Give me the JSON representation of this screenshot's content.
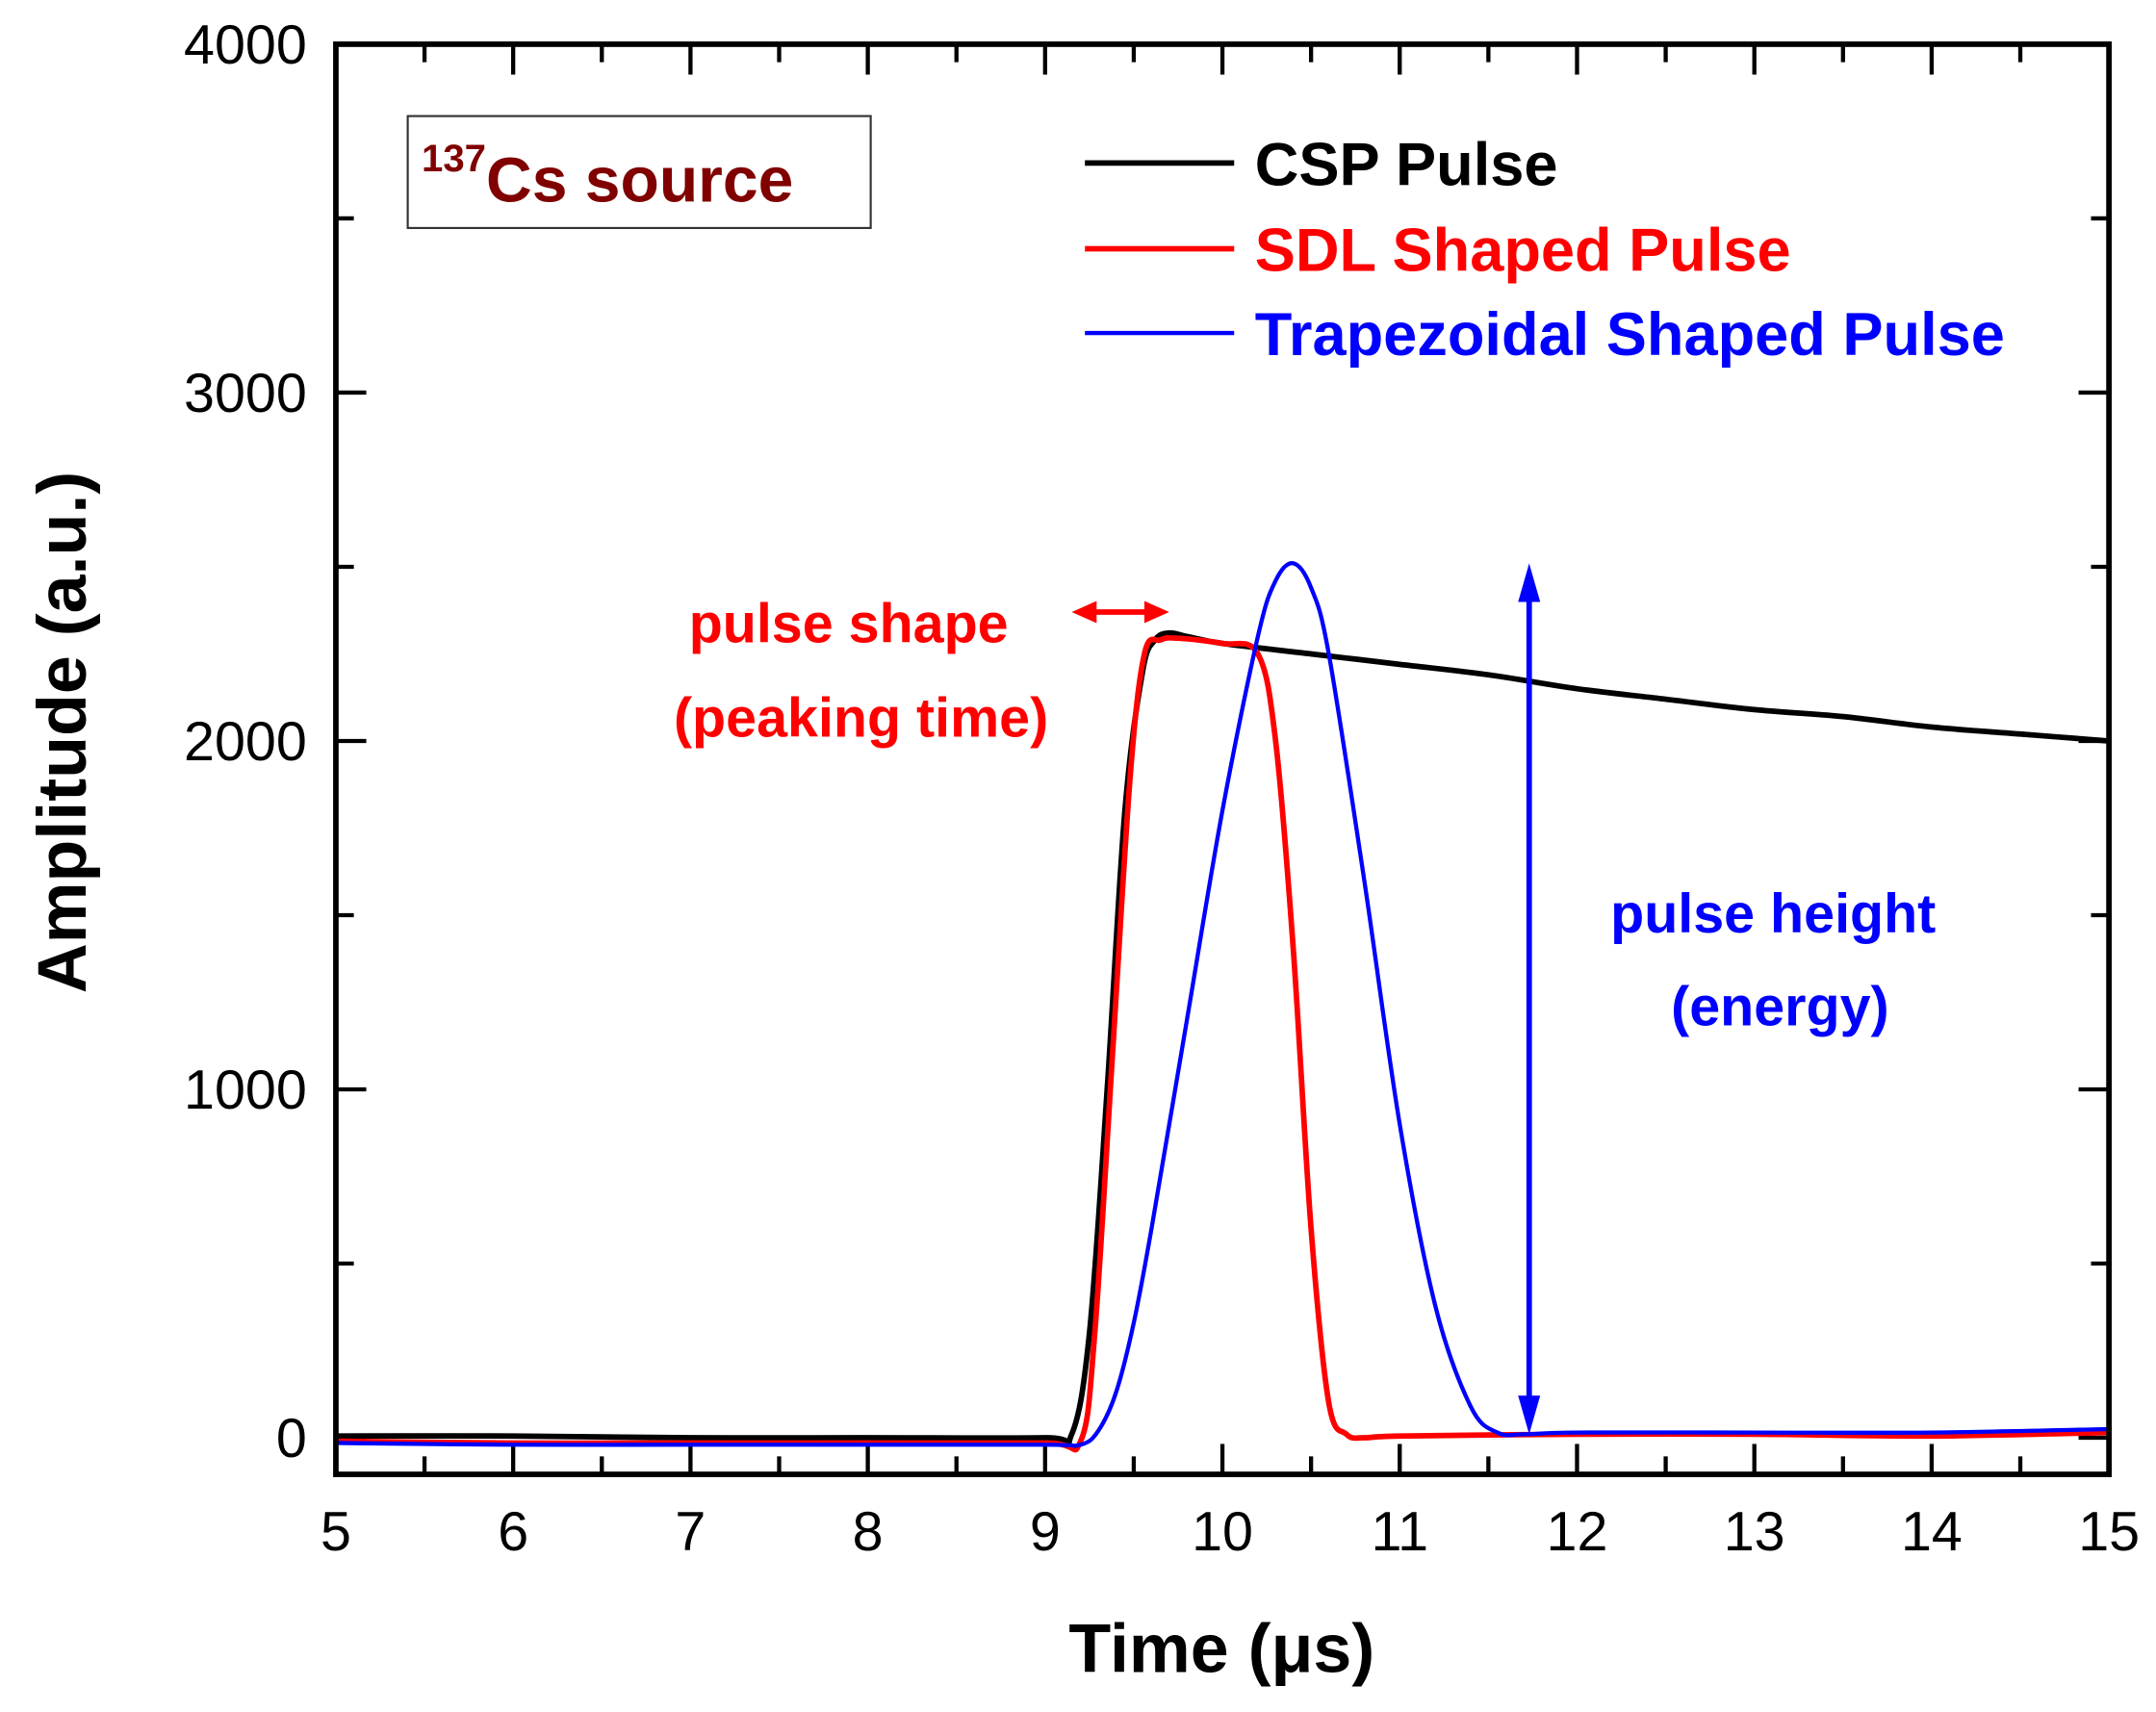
{
  "chart_data": {
    "type": "line",
    "xlabel": "Time (μs)",
    "ylabel": "Amplitude (a.u.)",
    "xlim": [
      5,
      15
    ],
    "ylim": [
      -105,
      4000
    ],
    "xticks": [
      5,
      6,
      7,
      8,
      9,
      10,
      11,
      12,
      13,
      14,
      15
    ],
    "yticks": [
      0,
      1000,
      2000,
      3000,
      4000
    ],
    "grid": false,
    "legend_position": "top-right",
    "source_box": {
      "superscript": "137",
      "text": "Cs source",
      "color": "#800000"
    },
    "series": [
      {
        "name": "CSP Pulse",
        "color": "#000000",
        "x": [
          5,
          6,
          7,
          8,
          9,
          9.15,
          9.25,
          9.35,
          9.45,
          9.55,
          9.62,
          9.7,
          9.8,
          10,
          10.5,
          11,
          11.5,
          12,
          12.5,
          13,
          13.5,
          14,
          14.5,
          15
        ],
        "y": [
          5,
          5,
          0,
          0,
          0,
          10,
          300,
          1000,
          1800,
          2200,
          2290,
          2310,
          2300,
          2280,
          2250,
          2220,
          2190,
          2150,
          2120,
          2090,
          2070,
          2040,
          2020,
          2000
        ]
      },
      {
        "name": "SDL Shaped Pulse",
        "color": "#ff0000",
        "x": [
          5,
          6,
          7,
          8,
          9,
          9.2,
          9.28,
          9.38,
          9.48,
          9.56,
          9.65,
          9.75,
          10,
          10.2,
          10.3,
          10.4,
          10.5,
          10.6,
          10.7,
          10.8,
          11,
          12,
          13,
          14,
          15
        ],
        "y": [
          -10,
          -15,
          -15,
          -15,
          -15,
          -10,
          300,
          1100,
          1900,
          2250,
          2290,
          2295,
          2280,
          2250,
          2000,
          1400,
          600,
          100,
          10,
          0,
          5,
          10,
          10,
          5,
          15
        ]
      },
      {
        "name": "Trapezoidal Shaped Pulse",
        "color": "#0000ff",
        "x": [
          5,
          6,
          7,
          8,
          9,
          9.2,
          9.3,
          9.4,
          9.5,
          9.6,
          9.8,
          10,
          10.2,
          10.3,
          10.4,
          10.5,
          10.6,
          10.8,
          11,
          11.2,
          11.4,
          11.55,
          11.7,
          12,
          13,
          14,
          15
        ],
        "y": [
          -15,
          -20,
          -20,
          -20,
          -20,
          -20,
          20,
          130,
          330,
          600,
          1200,
          1800,
          2300,
          2460,
          2510,
          2440,
          2250,
          1600,
          900,
          380,
          90,
          15,
          10,
          15,
          15,
          15,
          25
        ]
      }
    ],
    "annotations": [
      {
        "text": "pulse shape",
        "color": "#ff0000"
      },
      {
        "text": "(peaking time)",
        "color": "#ff0000"
      },
      {
        "text": "pulse height",
        "color": "#0000ff"
      },
      {
        "text": "(energy)",
        "color": "#0000ff"
      }
    ],
    "peaking_arrow": {
      "x_from": 9.15,
      "x_to": 9.7,
      "y": 2370
    },
    "height_arrow": {
      "x": 11.73,
      "y_from": 10,
      "y_to": 2510
    }
  }
}
